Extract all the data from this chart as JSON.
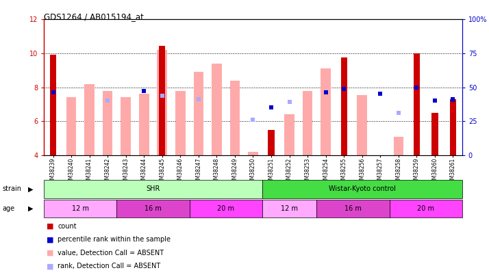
{
  "title": "GDS1264 / AB015194_at",
  "samples": [
    "GSM38239",
    "GSM38240",
    "GSM38241",
    "GSM38242",
    "GSM38243",
    "GSM38244",
    "GSM38245",
    "GSM38246",
    "GSM38247",
    "GSM38248",
    "GSM38249",
    "GSM38250",
    "GSM38251",
    "GSM38252",
    "GSM38253",
    "GSM38254",
    "GSM38255",
    "GSM38256",
    "GSM38257",
    "GSM38258",
    "GSM38259",
    "GSM38260",
    "GSM38261"
  ],
  "count_values": [
    9.9,
    null,
    null,
    null,
    null,
    null,
    10.45,
    null,
    null,
    null,
    null,
    null,
    5.5,
    null,
    null,
    null,
    9.75,
    null,
    null,
    null,
    10.0,
    6.5,
    7.3
  ],
  "absent_value": [
    null,
    7.4,
    8.2,
    7.8,
    7.4,
    7.6,
    10.2,
    7.8,
    8.9,
    9.4,
    8.4,
    4.2,
    null,
    6.4,
    7.8,
    9.1,
    null,
    7.55,
    null,
    5.1,
    null,
    null,
    null
  ],
  "rank_present": [
    7.7,
    null,
    null,
    null,
    null,
    7.8,
    null,
    null,
    null,
    null,
    null,
    null,
    null,
    null,
    null,
    7.7,
    7.9,
    null,
    7.6,
    null,
    8.0,
    null,
    7.3
  ],
  "rank_absent": [
    null,
    null,
    null,
    7.2,
    null,
    null,
    7.5,
    null,
    7.3,
    null,
    null,
    null,
    null,
    null,
    null,
    null,
    null,
    null,
    null,
    null,
    null,
    null,
    null
  ],
  "percentile_present": [
    null,
    null,
    null,
    null,
    null,
    null,
    null,
    null,
    null,
    null,
    null,
    null,
    6.8,
    null,
    null,
    null,
    null,
    null,
    null,
    null,
    null,
    7.2,
    7.25
  ],
  "percentile_absent": [
    null,
    null,
    null,
    null,
    null,
    null,
    null,
    null,
    null,
    null,
    null,
    6.1,
    null,
    7.15,
    null,
    null,
    null,
    null,
    null,
    6.5,
    null,
    null,
    null
  ],
  "ylim_left": [
    4,
    12
  ],
  "ylim_right": [
    0,
    100
  ],
  "yticks_left": [
    4,
    6,
    8,
    10,
    12
  ],
  "yticks_right": [
    0,
    25,
    50,
    75,
    100
  ],
  "ytick_labels_right": [
    "0",
    "25",
    "50",
    "75",
    "100%"
  ],
  "grid_lines": [
    6,
    8,
    10
  ],
  "strain_groups": [
    {
      "label": "SHR",
      "start": 0,
      "end": 12,
      "color": "#bbffbb"
    },
    {
      "label": "Wistar-Kyoto control",
      "start": 12,
      "end": 23,
      "color": "#44dd44"
    }
  ],
  "age_groups": [
    {
      "label": "12 m",
      "start": 0,
      "end": 4,
      "color": "#ffaaff"
    },
    {
      "label": "16 m",
      "start": 4,
      "end": 8,
      "color": "#dd44cc"
    },
    {
      "label": "20 m",
      "start": 8,
      "end": 12,
      "color": "#ff44ff"
    },
    {
      "label": "12 m",
      "start": 12,
      "end": 15,
      "color": "#ffaaff"
    },
    {
      "label": "16 m",
      "start": 15,
      "end": 19,
      "color": "#dd44cc"
    },
    {
      "label": "20 m",
      "start": 19,
      "end": 23,
      "color": "#ff44ff"
    }
  ],
  "color_count": "#cc0000",
  "color_absent_value": "#ffaaaa",
  "color_rank_present": "#0000cc",
  "color_rank_absent": "#aaaaff",
  "background_color": "#ffffff",
  "ybase": 4
}
